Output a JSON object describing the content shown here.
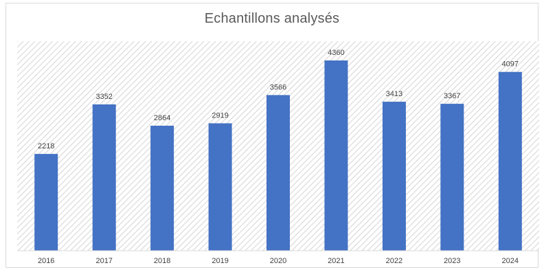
{
  "chart_data": {
    "type": "bar",
    "title": "Echantillons analysés",
    "categories": [
      "2016",
      "2017",
      "2018",
      "2019",
      "2020",
      "2021",
      "2022",
      "2023",
      "2024"
    ],
    "values": [
      2218,
      3352,
      2864,
      2919,
      3566,
      4360,
      3413,
      3367,
      4097
    ],
    "data_labels": [
      "2218",
      "3352",
      "2864",
      "2919",
      "3566",
      "4360",
      "3413",
      "3367",
      "4097"
    ],
    "xlabel": "",
    "ylabel": "",
    "ylim": [
      0,
      4800
    ],
    "grid": false,
    "legend": "none",
    "bar_color": "#4472c4",
    "plot_background": "hatched"
  }
}
